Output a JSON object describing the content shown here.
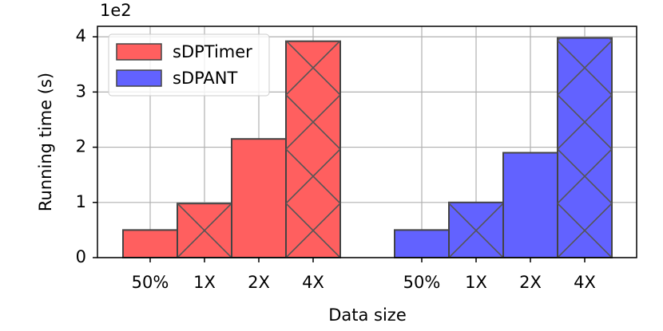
{
  "chart_data": {
    "type": "bar",
    "y_offset_label": "1e2",
    "ylabel": "Running time (s)",
    "xlabel": "Data size",
    "categories": [
      "50%",
      "1X",
      "2X",
      "4X",
      "50%",
      "1X",
      "2X",
      "4X"
    ],
    "series": [
      {
        "name": "sDPTimer",
        "color": "#ff5f5f",
        "values": [
          0.5,
          0.98,
          2.15,
          3.92,
          null,
          null,
          null,
          null
        ]
      },
      {
        "name": "sDPANT",
        "color": "#6262ff",
        "values": [
          null,
          null,
          null,
          null,
          0.5,
          1.0,
          1.9,
          3.98
        ]
      }
    ],
    "ylim": [
      0,
      4.19
    ],
    "yticks": [
      0,
      1,
      2,
      3,
      4
    ],
    "grid": true,
    "legend": "upper left"
  }
}
